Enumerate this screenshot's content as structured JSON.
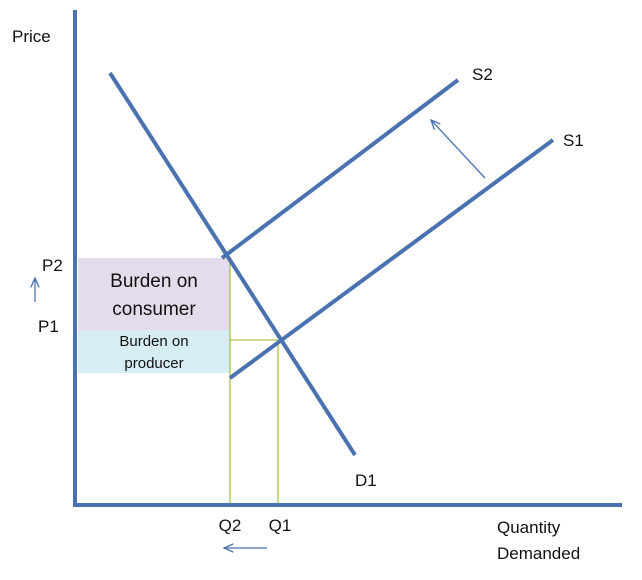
{
  "axes": {
    "y_label": "Price",
    "x_label": [
      "Quantity",
      "Demanded"
    ]
  },
  "curves": {
    "demand": "D1",
    "supply_original": "S1",
    "supply_shifted": "S2"
  },
  "prices": {
    "high": "P2",
    "low": "P1"
  },
  "quantities": {
    "low": "Q2",
    "high": "Q1"
  },
  "burdens": {
    "consumer": [
      "Burden on",
      "consumer"
    ],
    "producer": [
      "Burden on",
      "producer"
    ]
  }
}
